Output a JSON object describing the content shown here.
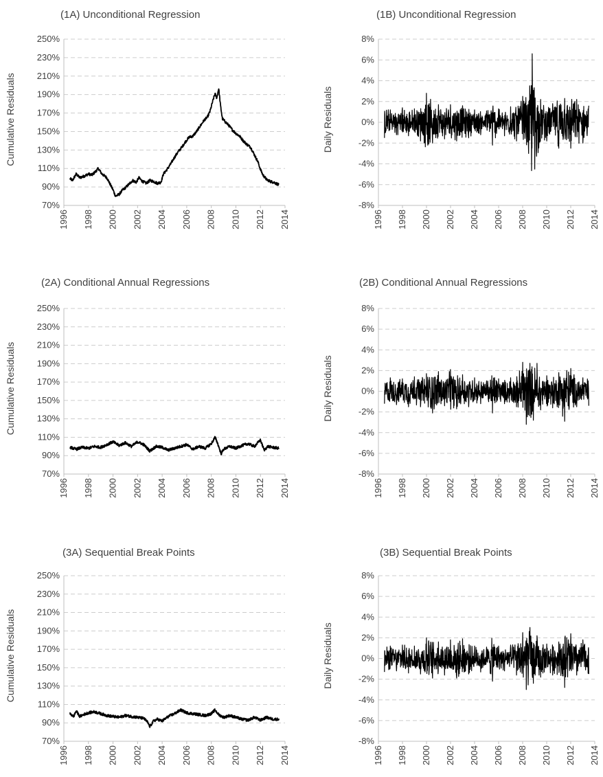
{
  "chart_data": [
    {
      "type": "line",
      "title": "(1A) Unconditional Regression",
      "ylabel": "Cumulative Residuals",
      "xlabel": "",
      "xlim": [
        1996,
        2014
      ],
      "ylim": [
        0.7,
        2.5
      ],
      "x_ticks": [
        "1996",
        "1998",
        "2000",
        "2002",
        "2004",
        "2006",
        "2008",
        "2010",
        "2012",
        "2014"
      ],
      "y_ticks": [
        "70%",
        "90%",
        "110%",
        "130%",
        "150%",
        "170%",
        "190%",
        "210%",
        "230%",
        "250%"
      ],
      "grid": "horizontal dashed",
      "series": [
        {
          "x": [
            1996.5,
            1996.7,
            1997.0,
            1997.3,
            1997.7,
            1998.0,
            1998.3,
            1998.6,
            1998.8,
            1999.1,
            1999.5,
            1999.8,
            2000.0,
            2000.2,
            2000.5,
            2000.8,
            2001.0,
            2001.3,
            2001.6,
            2001.9,
            2002.1,
            2002.4,
            2002.7,
            2003.0,
            2003.3,
            2003.6,
            2003.9,
            2004.1,
            2004.4,
            2004.7,
            2005.0,
            2005.3,
            2005.6,
            2005.9,
            2006.2,
            2006.5,
            2006.8,
            2007.1,
            2007.4,
            2007.7,
            2007.9,
            2008.1,
            2008.3,
            2008.45,
            2008.6,
            2008.75,
            2008.9,
            2009.1,
            2009.4,
            2009.7,
            2010.0,
            2010.3,
            2010.6,
            2010.9,
            2011.2,
            2011.5,
            2011.8,
            2012.0,
            2012.2,
            2012.5,
            2012.8,
            2013.1,
            2013.4,
            2013.5
          ],
          "values": [
            0.99,
            0.97,
            1.04,
            1.0,
            1.02,
            1.04,
            1.03,
            1.07,
            1.1,
            1.04,
            1.0,
            0.92,
            0.87,
            0.8,
            0.82,
            0.87,
            0.89,
            0.93,
            0.97,
            0.95,
            1.0,
            0.96,
            0.94,
            0.97,
            0.96,
            0.94,
            0.95,
            1.04,
            1.09,
            1.15,
            1.22,
            1.28,
            1.33,
            1.39,
            1.44,
            1.45,
            1.5,
            1.56,
            1.62,
            1.66,
            1.72,
            1.82,
            1.91,
            1.86,
            1.97,
            1.78,
            1.64,
            1.61,
            1.57,
            1.52,
            1.48,
            1.45,
            1.4,
            1.36,
            1.33,
            1.25,
            1.17,
            1.09,
            1.03,
            0.98,
            0.96,
            0.95,
            0.93,
            0.92
          ]
        }
      ]
    },
    {
      "type": "line",
      "title": "(1B) Unconditional Regression",
      "ylabel": "Daily Residuals",
      "xlabel": "",
      "xlim": [
        1996,
        2014
      ],
      "ylim": [
        -0.08,
        0.08
      ],
      "x_ticks": [
        "1996",
        "1998",
        "2000",
        "2002",
        "2004",
        "2006",
        "2008",
        "2010",
        "2012",
        "2014"
      ],
      "y_ticks": [
        "-8%",
        "-6%",
        "-4%",
        "-2%",
        "0%",
        "2%",
        "4%",
        "6%",
        "8%"
      ],
      "grid": "horizontal dashed",
      "series": [
        {
          "x": [
            1996.5,
            1997.0,
            1997.5,
            1998.0,
            1998.5,
            1999.0,
            1999.5,
            2000.0,
            2000.5,
            2001.0,
            2001.5,
            2002.0,
            2002.5,
            2003.0,
            2003.5,
            2004.0,
            2004.5,
            2005.0,
            2005.5,
            2006.0,
            2006.5,
            2007.0,
            2007.5,
            2008.0,
            2008.5,
            2008.8,
            2009.0,
            2009.5,
            2010.0,
            2010.5,
            2011.0,
            2011.5,
            2012.0,
            2012.5,
            2013.0,
            2013.5
          ],
          "values": [
            -0.015,
            0.012,
            -0.012,
            0.014,
            -0.013,
            0.013,
            -0.018,
            0.028,
            -0.02,
            0.017,
            -0.016,
            0.017,
            -0.018,
            0.016,
            -0.015,
            0.012,
            -0.012,
            0.011,
            -0.022,
            0.013,
            -0.013,
            0.015,
            -0.018,
            0.025,
            -0.03,
            0.066,
            -0.045,
            0.022,
            -0.018,
            0.018,
            -0.025,
            0.023,
            -0.025,
            0.022,
            -0.02,
            0.016
          ]
        }
      ]
    },
    {
      "type": "line",
      "title": "(2A) Conditional Annual Regressions",
      "ylabel": "Cumulative Residuals",
      "xlabel": "",
      "xlim": [
        1996,
        2014
      ],
      "ylim": [
        0.7,
        2.5
      ],
      "x_ticks": [
        "1996",
        "1998",
        "2000",
        "2002",
        "2004",
        "2006",
        "2008",
        "2010",
        "2012",
        "2014"
      ],
      "y_ticks": [
        "70%",
        "90%",
        "110%",
        "130%",
        "150%",
        "170%",
        "190%",
        "210%",
        "230%",
        "250%"
      ],
      "grid": "horizontal dashed",
      "series": [
        {
          "x": [
            1996.5,
            1997.0,
            1997.5,
            1998.0,
            1998.5,
            1999.0,
            1999.5,
            2000.0,
            2000.5,
            2001.0,
            2001.5,
            2002.0,
            2002.5,
            2003.0,
            2003.5,
            2004.0,
            2004.5,
            2005.0,
            2005.5,
            2006.0,
            2006.5,
            2007.0,
            2007.5,
            2008.0,
            2008.3,
            2008.5,
            2008.8,
            2009.0,
            2009.5,
            2010.0,
            2010.5,
            2011.0,
            2011.5,
            2012.0,
            2012.3,
            2012.6,
            2013.0,
            2013.5
          ],
          "values": [
            0.99,
            0.97,
            0.99,
            0.98,
            1.0,
            0.99,
            1.02,
            1.05,
            1.01,
            1.04,
            1.0,
            1.05,
            1.02,
            0.95,
            1.0,
            0.99,
            0.96,
            0.98,
            1.0,
            1.02,
            0.97,
            1.0,
            0.98,
            1.03,
            1.1,
            1.04,
            0.92,
            0.97,
            1.0,
            0.98,
            1.01,
            1.03,
            1.0,
            1.07,
            0.96,
            1.0,
            0.99,
            0.98
          ]
        }
      ]
    },
    {
      "type": "line",
      "title": "(2B) Conditional Annual Regressions",
      "ylabel": "Daily Residuals",
      "xlabel": "",
      "xlim": [
        1996,
        2014
      ],
      "ylim": [
        -0.08,
        0.08
      ],
      "x_ticks": [
        "1996",
        "1998",
        "2000",
        "2002",
        "2004",
        "2006",
        "2008",
        "2010",
        "2012",
        "2014"
      ],
      "y_ticks": [
        "8%",
        "6%",
        "4%",
        "2%",
        "0%",
        "-2%",
        "-4%",
        "-6%",
        "-8%"
      ],
      "grid": "horizontal dashed",
      "series": [
        {
          "x": [
            1996.5,
            1997.0,
            1997.5,
            1998.0,
            1998.5,
            1999.0,
            1999.5,
            2000.0,
            2000.5,
            2001.0,
            2001.5,
            2002.0,
            2002.5,
            2003.0,
            2003.5,
            2004.0,
            2004.5,
            2005.0,
            2005.5,
            2006.0,
            2006.5,
            2007.0,
            2007.5,
            2008.0,
            2008.3,
            2008.6,
            2008.9,
            2009.2,
            2009.5,
            2010.0,
            2010.5,
            2011.0,
            2011.5,
            2012.0,
            2012.5,
            2013.0,
            2013.5
          ],
          "values": [
            -0.012,
            0.013,
            -0.013,
            0.012,
            -0.015,
            0.014,
            -0.015,
            0.017,
            -0.021,
            0.019,
            -0.014,
            0.021,
            -0.017,
            0.016,
            -0.015,
            0.013,
            -0.012,
            0.01,
            -0.021,
            0.012,
            -0.012,
            0.013,
            -0.015,
            0.028,
            -0.032,
            0.027,
            -0.028,
            0.027,
            -0.018,
            0.015,
            -0.016,
            0.018,
            -0.029,
            0.022,
            -0.015,
            0.013,
            -0.014
          ]
        }
      ]
    },
    {
      "type": "line",
      "title": "(3A) Sequential Break Points",
      "ylabel": "Cumulative Residuals",
      "xlabel": "",
      "xlim": [
        1996,
        2014
      ],
      "ylim": [
        0.7,
        2.5
      ],
      "x_ticks": [
        "1996",
        "1998",
        "2000",
        "2002",
        "2004",
        "2006",
        "2008",
        "2010",
        "2012",
        "2014"
      ],
      "y_ticks": [
        "70%",
        "90%",
        "110%",
        "130%",
        "150%",
        "170%",
        "190%",
        "210%",
        "230%",
        "250%"
      ],
      "grid": "horizontal dashed",
      "series": [
        {
          "x": [
            1996.5,
            1996.8,
            1997.0,
            1997.3,
            1997.6,
            1998.0,
            1998.5,
            1999.0,
            1999.5,
            2000.0,
            2000.5,
            2001.0,
            2001.5,
            2002.0,
            2002.5,
            2002.8,
            2003.0,
            2003.3,
            2003.6,
            2004.0,
            2004.5,
            2005.0,
            2005.5,
            2006.0,
            2006.5,
            2007.0,
            2007.5,
            2008.0,
            2008.3,
            2008.6,
            2009.0,
            2009.5,
            2010.0,
            2010.5,
            2011.0,
            2011.5,
            2012.0,
            2012.5,
            2013.0,
            2013.5
          ],
          "values": [
            1.0,
            0.97,
            1.03,
            0.97,
            0.99,
            1.01,
            1.02,
            1.0,
            0.98,
            0.97,
            0.96,
            0.98,
            0.97,
            0.96,
            0.95,
            0.91,
            0.86,
            0.92,
            0.94,
            0.92,
            0.97,
            1.0,
            1.04,
            1.01,
            1.0,
            0.99,
            0.98,
            1.0,
            1.04,
            0.99,
            0.96,
            0.98,
            0.96,
            0.94,
            0.93,
            0.96,
            0.93,
            0.96,
            0.94,
            0.94
          ]
        }
      ]
    },
    {
      "type": "line",
      "title": "(3B) Sequential Break Points",
      "ylabel": "Daily Residuals",
      "xlabel": "",
      "xlim": [
        1996,
        2014
      ],
      "ylim": [
        -0.08,
        0.08
      ],
      "x_ticks": [
        "1996",
        "1998",
        "2000",
        "2002",
        "2004",
        "2006",
        "2008",
        "2010",
        "2012",
        "2014"
      ],
      "y_ticks": [
        "8%",
        "6%",
        "4%",
        "2%",
        "0%",
        "-2%",
        "-4%",
        "-6%",
        "-8%"
      ],
      "grid": "horizontal dashed",
      "series": [
        {
          "x": [
            1996.5,
            1997.0,
            1997.5,
            1998.0,
            1998.5,
            1999.0,
            1999.5,
            2000.0,
            2000.5,
            2001.0,
            2001.5,
            2002.0,
            2002.5,
            2003.0,
            2003.5,
            2004.0,
            2004.5,
            2005.0,
            2005.5,
            2006.0,
            2006.5,
            2007.0,
            2007.5,
            2008.0,
            2008.3,
            2008.6,
            2008.9,
            2009.2,
            2009.5,
            2010.0,
            2010.5,
            2011.0,
            2011.5,
            2012.0,
            2012.5,
            2013.0,
            2013.5
          ],
          "values": [
            -0.013,
            0.012,
            -0.012,
            0.013,
            -0.014,
            0.012,
            -0.015,
            0.02,
            -0.019,
            0.016,
            -0.016,
            0.018,
            -0.019,
            0.019,
            -0.015,
            0.012,
            -0.013,
            0.011,
            -0.022,
            0.012,
            -0.012,
            0.013,
            -0.016,
            0.025,
            -0.03,
            0.03,
            -0.024,
            0.022,
            -0.018,
            0.014,
            -0.016,
            0.016,
            -0.028,
            0.024,
            -0.016,
            0.018,
            -0.015
          ]
        }
      ]
    }
  ]
}
